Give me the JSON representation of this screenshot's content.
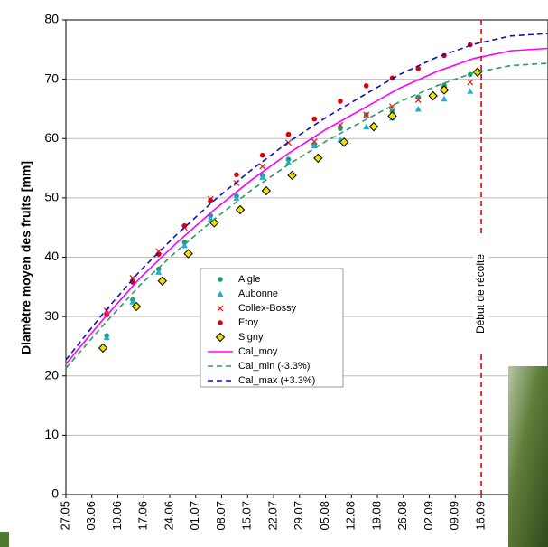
{
  "chart_data": {
    "type": "scatter",
    "y_label": "Diamètre moyen des fruits [mm]",
    "ylim": [
      0,
      80
    ],
    "yticks": [
      0,
      10,
      20,
      30,
      40,
      50,
      60,
      70,
      80
    ],
    "xlim": [
      0,
      130
    ],
    "xticks": [
      {
        "value": 0,
        "label": "27.05"
      },
      {
        "value": 7,
        "label": "03.06"
      },
      {
        "value": 14,
        "label": "10.06"
      },
      {
        "value": 21,
        "label": "17.06"
      },
      {
        "value": 28,
        "label": "24.06"
      },
      {
        "value": 35,
        "label": "01.07"
      },
      {
        "value": 42,
        "label": "08.07"
      },
      {
        "value": 49,
        "label": "15.07"
      },
      {
        "value": 56,
        "label": "22.07"
      },
      {
        "value": 63,
        "label": "29.07"
      },
      {
        "value": 70,
        "label": "05.08"
      },
      {
        "value": 77,
        "label": "12.08"
      },
      {
        "value": 84,
        "label": "19.08"
      },
      {
        "value": 91,
        "label": "26.08"
      },
      {
        "value": 98,
        "label": "02.09"
      },
      {
        "value": 105,
        "label": "09.09"
      },
      {
        "value": 112,
        "label": "16.09"
      }
    ],
    "grid": true,
    "vline": {
      "x": 112,
      "label": "Début de récolte",
      "color": "#e00000"
    },
    "series": [
      {
        "name": "Aigle",
        "color": "#14a070",
        "marker": "circle",
        "x": [
          11,
          18,
          25,
          32,
          39,
          46,
          53,
          60,
          67,
          74,
          81,
          88,
          95,
          102,
          109
        ],
        "values": [
          26.8,
          32.8,
          38,
          42.5,
          47,
          50.3,
          53.8,
          56.5,
          59,
          61.7,
          64,
          64.6,
          67,
          69,
          70.8
        ]
      },
      {
        "name": "Aubonne",
        "color": "#1ab0e0",
        "marker": "triangle",
        "x": [
          11,
          18,
          25,
          32,
          39,
          46,
          53,
          60,
          67,
          74,
          81,
          88,
          95,
          102,
          109
        ],
        "values": [
          26.5,
          32.5,
          37.5,
          42,
          46.5,
          50,
          53.5,
          56,
          58.8,
          59.8,
          62,
          63.5,
          65,
          66.7,
          68
        ]
      },
      {
        "name": "Collex-Bossy",
        "color": "#e02020",
        "marker": "x",
        "x": [
          11,
          18,
          25,
          32,
          39,
          46,
          53,
          60,
          67,
          74,
          81,
          88,
          95,
          102,
          109
        ],
        "values": [
          31,
          36.5,
          41,
          45,
          49.8,
          52.5,
          55.3,
          59.3,
          59.5,
          62.3,
          64,
          65.4,
          66.5,
          68.3,
          69.5
        ]
      },
      {
        "name": "Etoy",
        "color": "#e00000",
        "marker": "circle",
        "x": [
          11,
          18,
          25,
          32,
          39,
          46,
          53,
          60,
          67,
          74,
          81,
          88,
          95,
          102,
          109
        ],
        "values": [
          30.3,
          35.8,
          40.5,
          45.3,
          49.6,
          53.9,
          57.2,
          60.7,
          63.3,
          66.3,
          68.9,
          70.2,
          71.8,
          74,
          75.8
        ]
      },
      {
        "name": "Signy",
        "color": "#f0e000",
        "marker": "diamond",
        "x": [
          10,
          19,
          26,
          33,
          40,
          47,
          54,
          61,
          68,
          75,
          83,
          88,
          99,
          102,
          111
        ],
        "values": [
          24.7,
          31.7,
          36,
          40.6,
          45.8,
          48,
          51.2,
          53.8,
          56.7,
          59.4,
          62,
          63.8,
          67.2,
          68.2,
          71.2
        ]
      },
      {
        "name": "Cal_moy",
        "color": "#ff00ff",
        "marker": "line",
        "dash": "none",
        "x": [
          0,
          10,
          20,
          30,
          40,
          50,
          60,
          70,
          80,
          90,
          100,
          110,
          120,
          130
        ],
        "values": [
          22,
          29.5,
          36.5,
          42.5,
          48,
          53,
          57.5,
          61.5,
          65,
          68.5,
          71.3,
          73.5,
          74.8,
          75.2
        ]
      },
      {
        "name": "Cal_min (-3.3%)",
        "color": "#339966",
        "marker": "line",
        "dash": "6,4",
        "x": [
          0,
          10,
          20,
          30,
          40,
          50,
          60,
          70,
          80,
          90,
          100,
          110,
          120,
          130
        ],
        "values": [
          21.3,
          28.5,
          35.3,
          41.1,
          46.4,
          51.3,
          55.6,
          59.5,
          62.9,
          66.2,
          68.9,
          71.1,
          72.3,
          72.7
        ]
      },
      {
        "name": "Cal_max (+3.3%)",
        "color": "#1010c0",
        "marker": "line",
        "dash": "6,4",
        "x": [
          0,
          10,
          20,
          30,
          40,
          50,
          60,
          70,
          80,
          90,
          100,
          110,
          120,
          130
        ],
        "values": [
          22.7,
          30.5,
          37.7,
          43.9,
          49.6,
          54.7,
          59.4,
          63.5,
          67.2,
          70.8,
          73.7,
          75.9,
          77.3,
          77.7
        ]
      }
    ]
  }
}
